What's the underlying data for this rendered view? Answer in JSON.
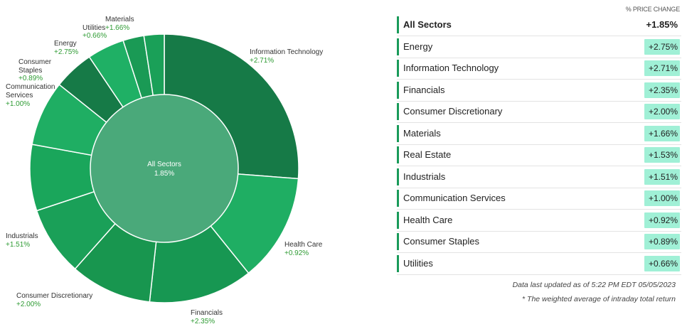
{
  "chart_data": {
    "type": "pie",
    "center": {
      "label": "All Sectors",
      "value": "1.85%"
    },
    "slices": [
      {
        "name": "Information Technology",
        "label": "+2.71%",
        "weight": 27.0,
        "color": "#167a47"
      },
      {
        "name": "Health Care",
        "label": "+0.92%",
        "weight": 13.4,
        "color": "#1fae63"
      },
      {
        "name": "Financials",
        "label": "+2.35%",
        "weight": 12.9,
        "color": "#179752"
      },
      {
        "name": "Consumer Discretionary",
        "label": "+2.00%",
        "weight": 10.1,
        "color": "#18964f"
      },
      {
        "name": "Industrials",
        "label": "+1.51%",
        "weight": 8.6,
        "color": "#1aa058"
      },
      {
        "name": "",
        "label": "",
        "weight": 8.2,
        "color": "#1aa65b"
      },
      {
        "name": "Communication Services",
        "label": "+1.00%",
        "weight": 8.1,
        "color": "#1fae63"
      },
      {
        "name": "Consumer Staples",
        "label": "+0.89%",
        "weight": 5.0,
        "color": "#167a47"
      },
      {
        "name": "Energy",
        "label": "+2.75%",
        "weight": 4.6,
        "color": "#1fb065"
      },
      {
        "name": "Utilities",
        "label": "+0.66%",
        "weight": 2.6,
        "color": "#1a9a55"
      },
      {
        "name": "Materials",
        "label": "+1.66%",
        "weight": 2.5,
        "color": "#1aa058"
      }
    ]
  },
  "table": {
    "header": "% PRICE CHANGE",
    "rows": [
      {
        "name": "All Sectors",
        "value": "+1.85%"
      },
      {
        "name": "Energy",
        "value": "+2.75%"
      },
      {
        "name": "Information Technology",
        "value": "+2.71%"
      },
      {
        "name": "Financials",
        "value": "+2.35%"
      },
      {
        "name": "Consumer Discretionary",
        "value": "+2.00%"
      },
      {
        "name": "Materials",
        "value": "+1.66%"
      },
      {
        "name": "Real Estate",
        "value": "+1.53%"
      },
      {
        "name": "Industrials",
        "value": "+1.51%"
      },
      {
        "name": "Communication Services",
        "value": "+1.00%"
      },
      {
        "name": "Health Care",
        "value": "+0.92%"
      },
      {
        "name": "Consumer Staples",
        "value": "+0.89%"
      },
      {
        "name": "Utilities",
        "value": "+0.66%"
      }
    ],
    "footnote1": "Data last updated as of 5:22 PM EDT 05/05/2023",
    "footnote2": "* The weighted average of intraday total return"
  }
}
